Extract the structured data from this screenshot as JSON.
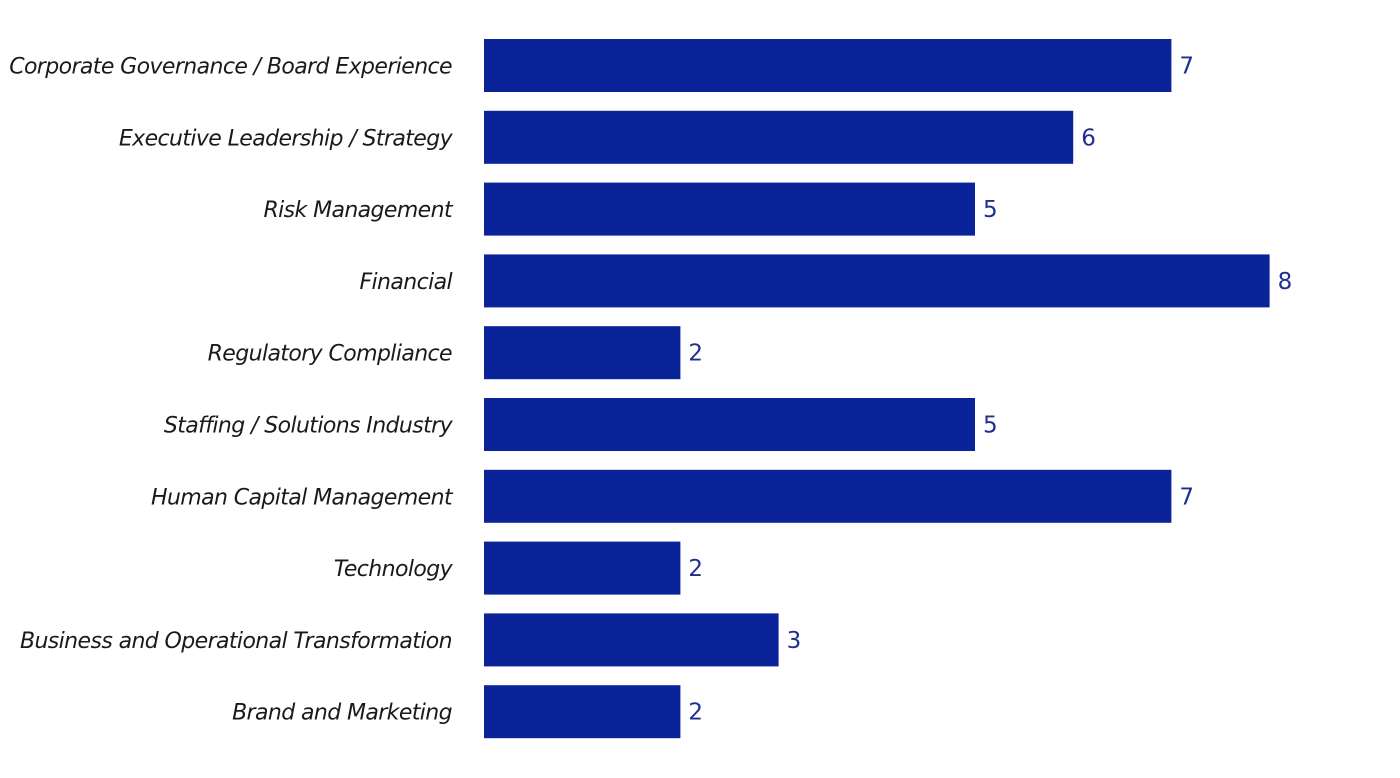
{
  "chart_data": {
    "type": "bar",
    "orientation": "horizontal",
    "title": "",
    "xlabel": "",
    "ylabel": "",
    "categories": [
      "Corporate Governance / Board Experience",
      "Executive Leadership / Strategy",
      "Risk Management",
      "Financial",
      "Regulatory Compliance",
      "Staffing / Solutions Industry",
      "Human Capital Management",
      "Technology",
      "Business and Operational Transformation",
      "Brand and Marketing"
    ],
    "values": [
      7,
      6,
      5,
      8,
      2,
      5,
      7,
      2,
      3,
      2
    ],
    "xlim": [
      0,
      8
    ],
    "grid": false,
    "legend": "none",
    "data_labels": true,
    "bar_color": "#0B2399",
    "label_color": "#1F2F8F"
  }
}
